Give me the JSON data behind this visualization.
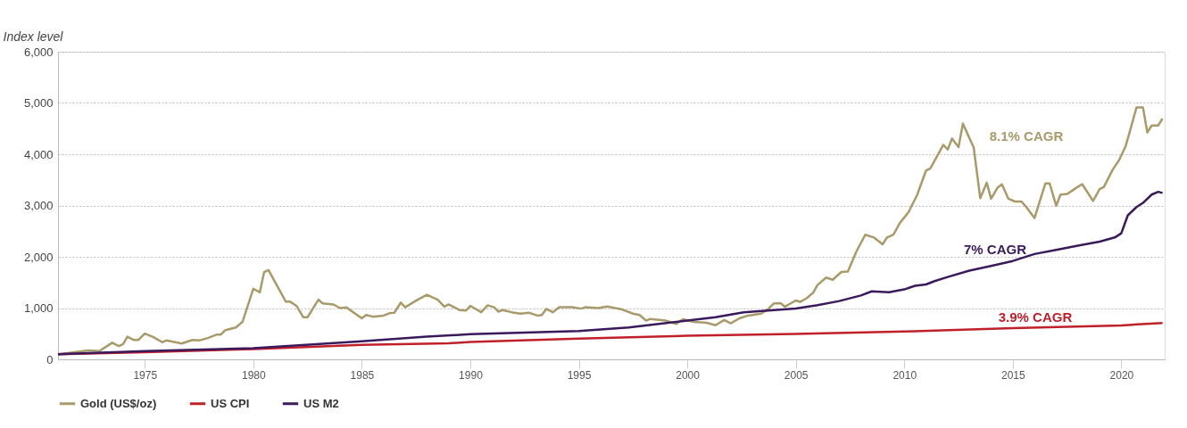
{
  "chart_data": {
    "type": "line",
    "ylabel": "Index level",
    "xlim": [
      1971,
      2022
    ],
    "xticks": [
      1975,
      1980,
      1985,
      1990,
      1995,
      2000,
      2005,
      2010,
      2015,
      2020
    ],
    "ylim": [
      0,
      6000
    ],
    "yticks": [
      0,
      {
        "value": 1000,
        "label": "1,000"
      },
      {
        "value": 2000,
        "label": "2,000"
      },
      {
        "value": 3000,
        "label": "3,000"
      },
      {
        "value": 4000,
        "label": "4,000"
      },
      {
        "value": 5000,
        "label": "5,000"
      },
      {
        "value": 6000,
        "label": "6,000"
      }
    ],
    "grid": "y",
    "legend": "bottom left",
    "line_style": "solid",
    "marker": "none",
    "series": [
      {
        "name": "Gold (US$/oz)",
        "color": "#a89a6a",
        "x": [
          1971.0,
          1971.2,
          1972.4,
          1972.9,
          1973.5,
          1973.8,
          1974.0,
          1974.2,
          1974.5,
          1974.7,
          1975.0,
          1975.4,
          1975.8,
          1976.0,
          1976.7,
          1977.2,
          1977.5,
          1977.9,
          1978.3,
          1978.5,
          1978.7,
          1979.2,
          1979.5,
          1980.0,
          1980.3,
          1980.5,
          1980.7,
          1981.5,
          1981.7,
          1982.0,
          1982.3,
          1982.5,
          1983.0,
          1983.2,
          1983.7,
          1984.0,
          1984.3,
          1985.0,
          1985.2,
          1985.5,
          1986.0,
          1986.3,
          1986.5,
          1986.8,
          1987.0,
          1987.5,
          1988.0,
          1988.5,
          1988.8,
          1989.0,
          1989.5,
          1989.8,
          1990.0,
          1990.5,
          1990.8,
          1991.1,
          1991.3,
          1991.5,
          1991.9,
          1992.3,
          1992.7,
          1993.1,
          1993.3,
          1993.5,
          1993.8,
          1994.1,
          1994.7,
          1995.1,
          1995.3,
          1995.9,
          1996.3,
          1997.0,
          1997.5,
          1997.8,
          1998.1,
          1998.3,
          1999.0,
          1999.5,
          1999.8,
          2000.3,
          2000.9,
          2001.3,
          2001.7,
          2002.0,
          2002.4,
          2002.8,
          2003.4,
          2003.7,
          2004.0,
          2004.3,
          2004.5,
          2005.0,
          2005.2,
          2005.5,
          2005.8,
          2006.0,
          2006.4,
          2006.7,
          2007.1,
          2007.4,
          2007.8,
          2008.2,
          2008.6,
          2009.0,
          2009.2,
          2009.5,
          2009.8,
          2010.2,
          2010.6,
          2011.0,
          2011.2,
          2011.8,
          2012.0,
          2012.2,
          2012.5,
          2012.7,
          2013.2,
          2013.5,
          2013.8,
          2014.0,
          2014.3,
          2014.5,
          2014.8,
          2015.1,
          2015.4,
          2015.6,
          2016.0,
          2016.3,
          2016.5,
          2016.7,
          2017.0,
          2017.2,
          2017.5,
          2017.9,
          2018.2,
          2018.7,
          2019.0,
          2019.2,
          2019.6,
          2019.9,
          2020.2,
          2020.4,
          2020.7,
          2021.0,
          2021.2,
          2021.4,
          2021.7,
          2021.9
        ],
        "values": [
          100,
          108,
          173,
          162,
          324,
          259,
          297,
          443,
          378,
          378,
          503,
          432,
          335,
          368,
          308,
          378,
          368,
          416,
          481,
          481,
          568,
          622,
          730,
          1378,
          1308,
          1703,
          1741,
          1124,
          1124,
          1038,
          822,
          822,
          1162,
          1092,
          1070,
          1000,
          1011,
          800,
          865,
          832,
          854,
          903,
          908,
          1108,
          1016,
          1146,
          1259,
          1162,
          1027,
          1070,
          962,
          951,
          1043,
          919,
          1054,
          1016,
          930,
          962,
          919,
          892,
          908,
          854,
          865,
          984,
          919,
          1016,
          1016,
          989,
          1016,
          1000,
          1032,
          973,
          892,
          865,
          757,
          789,
          757,
          692,
          784,
          730,
          714,
          665,
          768,
          703,
          800,
          854,
          892,
          973,
          1092,
          1097,
          1027,
          1148,
          1121,
          1191,
          1299,
          1450,
          1596,
          1553,
          1704,
          1714,
          2108,
          2431,
          2377,
          2243,
          2377,
          2431,
          2663,
          2873,
          3213,
          3682,
          3725,
          4183,
          4092,
          4307,
          4140,
          4598,
          4129,
          3143,
          3445,
          3132,
          3348,
          3412,
          3132,
          3078,
          3078,
          2981,
          2755,
          3159,
          3429,
          3429,
          2997,
          3213,
          3224,
          3337,
          3418,
          3089,
          3321,
          3364,
          3698,
          3887,
          4156,
          4453,
          4911,
          4911,
          4426,
          4561,
          4561,
          4695
        ]
      },
      {
        "name": "US CPI",
        "color": "#c0202a",
        "x": [
          1971,
          1975,
          1980,
          1985,
          1989,
          1990,
          1995,
          2000,
          2005,
          2010,
          2015,
          2020,
          2021.9
        ],
        "values": [
          100,
          140,
          200,
          281,
          313,
          340,
          405,
          459,
          495,
          544,
          609,
          663,
          710
        ]
      },
      {
        "name": "US M2",
        "color": "#3a1a5c",
        "x": [
          1971,
          1975,
          1980,
          1985,
          1988,
          1990,
          1995,
          1997.3,
          2000,
          2001.3,
          2002.6,
          2005,
          2006,
          2007,
          2008,
          2008.5,
          2009.3,
          2010,
          2010.5,
          2011,
          2011.4,
          2012,
          2013,
          2014,
          2015,
          2016,
          2017,
          2018,
          2019,
          2019.7,
          2020.0,
          2020.3,
          2020.7,
          2021.0,
          2021.4,
          2021.7,
          2021.9
        ],
        "values": [
          100,
          162,
          216,
          351,
          443,
          490,
          551,
          622,
          757,
          822,
          919,
          990,
          1057,
          1137,
          1245,
          1326,
          1310,
          1364,
          1434,
          1461,
          1526,
          1606,
          1730,
          1822,
          1919,
          2054,
          2135,
          2216,
          2297,
          2377,
          2458,
          2809,
          2970,
          3051,
          3213,
          3267,
          3245
        ]
      }
    ],
    "annotations": [
      "8.1% CAGR",
      "3.9% CAGR",
      "7% CAGR"
    ]
  }
}
